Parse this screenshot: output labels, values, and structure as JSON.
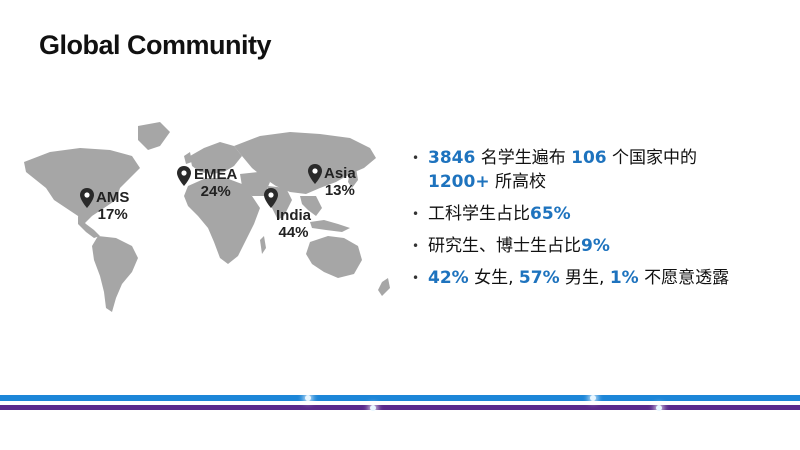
{
  "title": "Global Community",
  "regions": [
    {
      "name": "AMS",
      "pct": "17%"
    },
    {
      "name": "EMEA",
      "pct": "24%"
    },
    {
      "name": "India",
      "pct": "44%"
    },
    {
      "name": "Asia",
      "pct": "13%"
    }
  ],
  "bullets": {
    "b1": {
      "n1": "3846",
      "t1": " 名学生遍布 ",
      "n2": "106",
      "t2": " 个国家中的",
      "n3": "1200+",
      "t3": " 所高校"
    },
    "b2": {
      "t1": "工科学生占比",
      "n1": "65%"
    },
    "b3": {
      "t1": "研究生、博士生占比",
      "n1": "9%"
    },
    "b4": {
      "n1": "42%",
      "t1": " 女生, ",
      "n2": "57%",
      "t2": " 男生, ",
      "n3": "1%",
      "t3": " 不愿意透露"
    }
  },
  "colors": {
    "accent": "#1e73be",
    "bar_blue": "#1c86d8",
    "bar_purple": "#5a2a8c",
    "map_gray": "#a6a6a6"
  }
}
